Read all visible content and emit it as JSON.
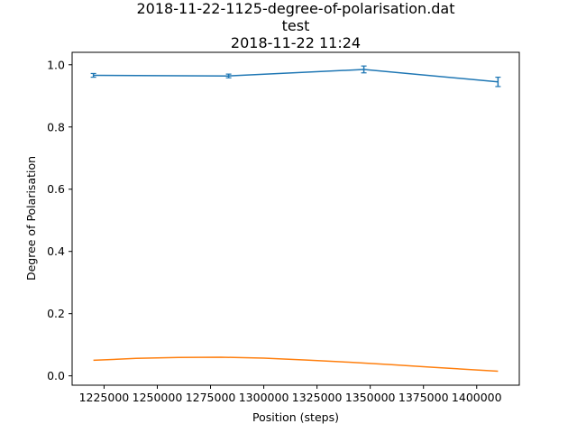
{
  "chart_data": {
    "type": "line",
    "title_lines": [
      "2018-11-22-1125-degree-of-polarisation.dat",
      "test",
      "2018-11-22 11:24"
    ],
    "xlabel": "Position (steps)",
    "ylabel": "Degree of Polarisation",
    "xlim": [
      1210000,
      1420000
    ],
    "ylim": [
      -0.03,
      1.04
    ],
    "x_ticks": [
      1225000,
      1250000,
      1275000,
      1300000,
      1325000,
      1350000,
      1375000,
      1400000
    ],
    "x_tick_labels": [
      "1225000",
      "1250000",
      "1275000",
      "1300000",
      "1325000",
      "1350000",
      "1375000",
      "1400000"
    ],
    "y_ticks": [
      0.0,
      0.2,
      0.4,
      0.6,
      0.8,
      1.0
    ],
    "y_tick_labels": [
      "0.0",
      "0.2",
      "0.4",
      "0.6",
      "0.8",
      "1.0"
    ],
    "grid": false,
    "series": [
      {
        "color": "#1f77b4",
        "style": "errorbar",
        "x": [
          1220000,
          1283500,
          1347000,
          1410000
        ],
        "y": [
          0.966,
          0.964,
          0.985,
          0.945
        ],
        "yerr": [
          0.006,
          0.006,
          0.011,
          0.015
        ]
      },
      {
        "color": "#ff7f0e",
        "style": "line",
        "x": [
          1220000,
          1240000,
          1260000,
          1280000,
          1300000,
          1320000,
          1340000,
          1360000,
          1380000,
          1400000,
          1410000
        ],
        "y": [
          0.05,
          0.056,
          0.059,
          0.06,
          0.057,
          0.051,
          0.044,
          0.036,
          0.027,
          0.019,
          0.015
        ]
      }
    ]
  }
}
